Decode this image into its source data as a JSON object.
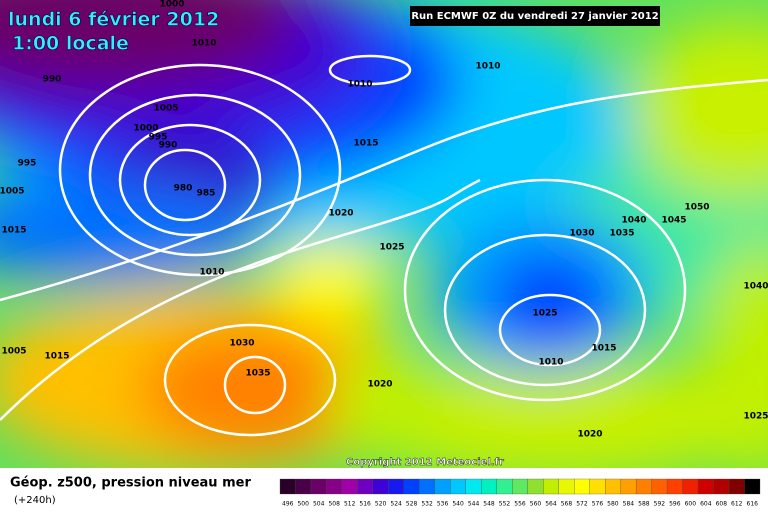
{
  "header": {
    "date": "lundi 6 février 2012",
    "time": "1:00 locale",
    "run": "Run ECMWF 0Z du vendredi 27 janvier 2012"
  },
  "map": {
    "copyright": "Copyright 2012 Meteociel.fr",
    "isobar_labels": [
      "1000",
      "1010",
      "990",
      "1005",
      "1000",
      "995",
      "990",
      "995",
      "1005",
      "980",
      "985",
      "1015",
      "1010",
      "1020",
      "1015",
      "1010",
      "1010",
      "1025",
      "1030",
      "1035",
      "1040",
      "1045",
      "1050",
      "1040",
      "1025",
      "1015",
      "1010",
      "1030",
      "1035",
      "1005",
      "1015",
      "1020",
      "1025",
      "1020"
    ]
  },
  "footer": {
    "title": "Géop. z500, pression niveau mer",
    "lead": "(+240h)"
  },
  "legend": {
    "items": [
      {
        "label": "496",
        "color": "#2a0028"
      },
      {
        "label": "500",
        "color": "#4a0048"
      },
      {
        "label": "504",
        "color": "#6a0068"
      },
      {
        "label": "508",
        "color": "#880088"
      },
      {
        "label": "512",
        "color": "#a000a8"
      },
      {
        "label": "516",
        "color": "#7000c0"
      },
      {
        "label": "520",
        "color": "#4000d8"
      },
      {
        "label": "524",
        "color": "#1818f0"
      },
      {
        "label": "528",
        "color": "#0040ff"
      },
      {
        "label": "532",
        "color": "#0070ff"
      },
      {
        "label": "536",
        "color": "#00a0ff"
      },
      {
        "label": "540",
        "color": "#00c8ff"
      },
      {
        "label": "544",
        "color": "#00e8f0"
      },
      {
        "label": "548",
        "color": "#00f0c0"
      },
      {
        "label": "552",
        "color": "#30f090"
      },
      {
        "label": "556",
        "color": "#60e860"
      },
      {
        "label": "560",
        "color": "#90e030"
      },
      {
        "label": "564",
        "color": "#c0f000"
      },
      {
        "label": "568",
        "color": "#e8f800"
      },
      {
        "label": "572",
        "color": "#ffff00"
      },
      {
        "label": "576",
        "color": "#ffe000"
      },
      {
        "label": "580",
        "color": "#ffc000"
      },
      {
        "label": "584",
        "color": "#ffa000"
      },
      {
        "label": "588",
        "color": "#ff8000"
      },
      {
        "label": "592",
        "color": "#ff6000"
      },
      {
        "label": "596",
        "color": "#ff4000"
      },
      {
        "label": "600",
        "color": "#f02000"
      },
      {
        "label": "604",
        "color": "#d00000"
      },
      {
        "label": "608",
        "color": "#b00000"
      },
      {
        "label": "612",
        "color": "#800000"
      },
      {
        "label": "616",
        "color": "#000000"
      }
    ]
  }
}
